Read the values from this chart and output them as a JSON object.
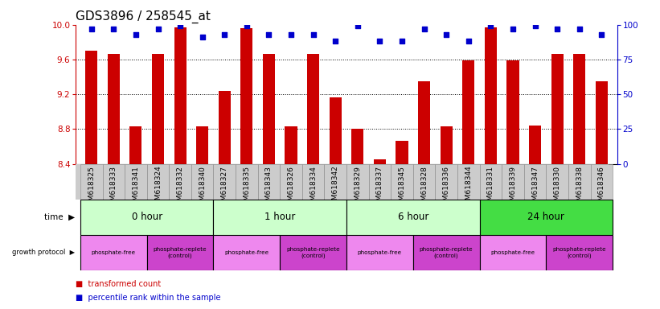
{
  "title": "GDS3896 / 258545_at",
  "samples": [
    "GSM618325",
    "GSM618333",
    "GSM618341",
    "GSM618324",
    "GSM618332",
    "GSM618340",
    "GSM618327",
    "GSM618335",
    "GSM618343",
    "GSM618326",
    "GSM618334",
    "GSM618342",
    "GSM618329",
    "GSM618337",
    "GSM618345",
    "GSM618328",
    "GSM618336",
    "GSM618344",
    "GSM618331",
    "GSM618339",
    "GSM618347",
    "GSM618330",
    "GSM618338",
    "GSM618346"
  ],
  "transformed_count": [
    9.7,
    9.66,
    8.83,
    9.66,
    9.97,
    8.83,
    9.24,
    9.96,
    9.66,
    8.83,
    9.66,
    9.16,
    8.8,
    8.45,
    8.66,
    9.35,
    8.83,
    9.59,
    9.97,
    9.59,
    8.84,
    9.66,
    9.66,
    9.35
  ],
  "percentile_rank": [
    97,
    97,
    93,
    97,
    99,
    91,
    93,
    99,
    93,
    93,
    93,
    88,
    99,
    88,
    88,
    97,
    93,
    88,
    99,
    97,
    99,
    97,
    97,
    93
  ],
  "ylim_left": [
    8.4,
    10.0
  ],
  "ylim_right": [
    0,
    100
  ],
  "yticks_left": [
    8.4,
    8.8,
    9.2,
    9.6,
    10.0
  ],
  "yticks_right": [
    0,
    25,
    50,
    75,
    100
  ],
  "bar_color": "#cc0000",
  "dot_color": "#0000cc",
  "axis_color_left": "#cc0000",
  "axis_color_right": "#0000cc",
  "title_fontsize": 11,
  "tick_label_fontsize": 6.5,
  "time_groups": [
    {
      "label": "0 hour",
      "start": 0,
      "end": 6,
      "color": "#ccffcc"
    },
    {
      "label": "1 hour",
      "start": 6,
      "end": 12,
      "color": "#ccffcc"
    },
    {
      "label": "6 hour",
      "start": 12,
      "end": 18,
      "color": "#ccffcc"
    },
    {
      "label": "24 hour",
      "start": 18,
      "end": 24,
      "color": "#44dd44"
    }
  ],
  "protocol_groups": [
    {
      "label": "phosphate-free",
      "start": 0,
      "end": 3,
      "type": "free"
    },
    {
      "label": "phosphate-replete\n(control)",
      "start": 3,
      "end": 6,
      "type": "replete"
    },
    {
      "label": "phosphate-free",
      "start": 6,
      "end": 9,
      "type": "free"
    },
    {
      "label": "phosphate-replete\n(control)",
      "start": 9,
      "end": 12,
      "type": "replete"
    },
    {
      "label": "phosphate-free",
      "start": 12,
      "end": 15,
      "type": "free"
    },
    {
      "label": "phosphate-replete\n(control)",
      "start": 15,
      "end": 18,
      "type": "replete"
    },
    {
      "label": "phosphate-free",
      "start": 18,
      "end": 21,
      "type": "free"
    },
    {
      "label": "phosphate-replete\n(control)",
      "start": 21,
      "end": 24,
      "type": "replete"
    }
  ],
  "proto_color_free": "#ee88ee",
  "proto_color_replete": "#cc44cc",
  "sample_bg_color": "#cccccc",
  "legend_bar_color": "#cc0000",
  "legend_dot_color": "#0000cc"
}
